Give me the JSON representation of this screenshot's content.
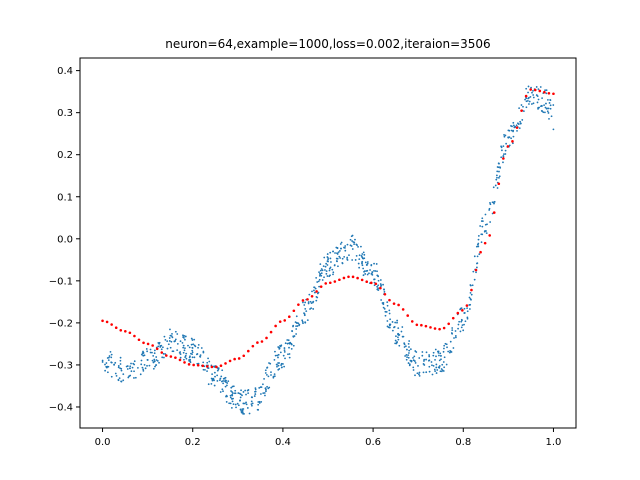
{
  "chart_data": {
    "type": "scatter",
    "title": "neuron=64,example=1000,loss=0.002,iteraion=3506",
    "xlabel": "",
    "ylabel": "",
    "xlim": [
      -0.05,
      1.05
    ],
    "ylim": [
      -0.45,
      0.43
    ],
    "x_ticks": [
      0.0,
      0.2,
      0.4,
      0.6,
      0.8,
      1.0
    ],
    "x_tick_labels": [
      "0.0",
      "0.2",
      "0.4",
      "0.6",
      "0.8",
      "1.0"
    ],
    "y_ticks": [
      -0.4,
      -0.3,
      -0.2,
      -0.1,
      0.0,
      0.1,
      0.2,
      0.3,
      0.4
    ],
    "y_tick_labels": [
      "−0.4",
      "−0.3",
      "−0.2",
      "−0.1",
      "0.0",
      "0.1",
      "0.2",
      "0.3",
      "0.4"
    ],
    "grid": false,
    "legend": "none",
    "noisy_samples": {
      "color": "#1f77b4",
      "count": 1000,
      "noise_amplitude": 0.03,
      "x_range": [
        0.0,
        1.0
      ],
      "underlying_curve": {
        "x": [
          0.0,
          0.05,
          0.1,
          0.15,
          0.2,
          0.25,
          0.3,
          0.33,
          0.4,
          0.45,
          0.5,
          0.55,
          0.6,
          0.65,
          0.7,
          0.75,
          0.8,
          0.85,
          0.9,
          0.95,
          0.98,
          1.0
        ],
        "y": [
          -0.29,
          -0.315,
          -0.29,
          -0.245,
          -0.265,
          -0.33,
          -0.385,
          -0.39,
          -0.28,
          -0.17,
          -0.06,
          -0.02,
          -0.08,
          -0.22,
          -0.3,
          -0.29,
          -0.19,
          0.04,
          0.24,
          0.34,
          0.33,
          0.29
        ]
      }
    },
    "model_prediction": {
      "color": "#ff0000",
      "count": 100,
      "x": [
        0.0,
        0.05,
        0.1,
        0.15,
        0.2,
        0.25,
        0.3,
        0.35,
        0.4,
        0.45,
        0.5,
        0.55,
        0.6,
        0.65,
        0.7,
        0.75,
        0.8,
        0.85,
        0.9,
        0.95,
        1.0
      ],
      "y": [
        -0.195,
        -0.22,
        -0.25,
        -0.28,
        -0.3,
        -0.305,
        -0.285,
        -0.245,
        -0.195,
        -0.145,
        -0.105,
        -0.09,
        -0.105,
        -0.155,
        -0.205,
        -0.215,
        -0.17,
        -0.01,
        0.22,
        0.355,
        0.345
      ]
    }
  }
}
